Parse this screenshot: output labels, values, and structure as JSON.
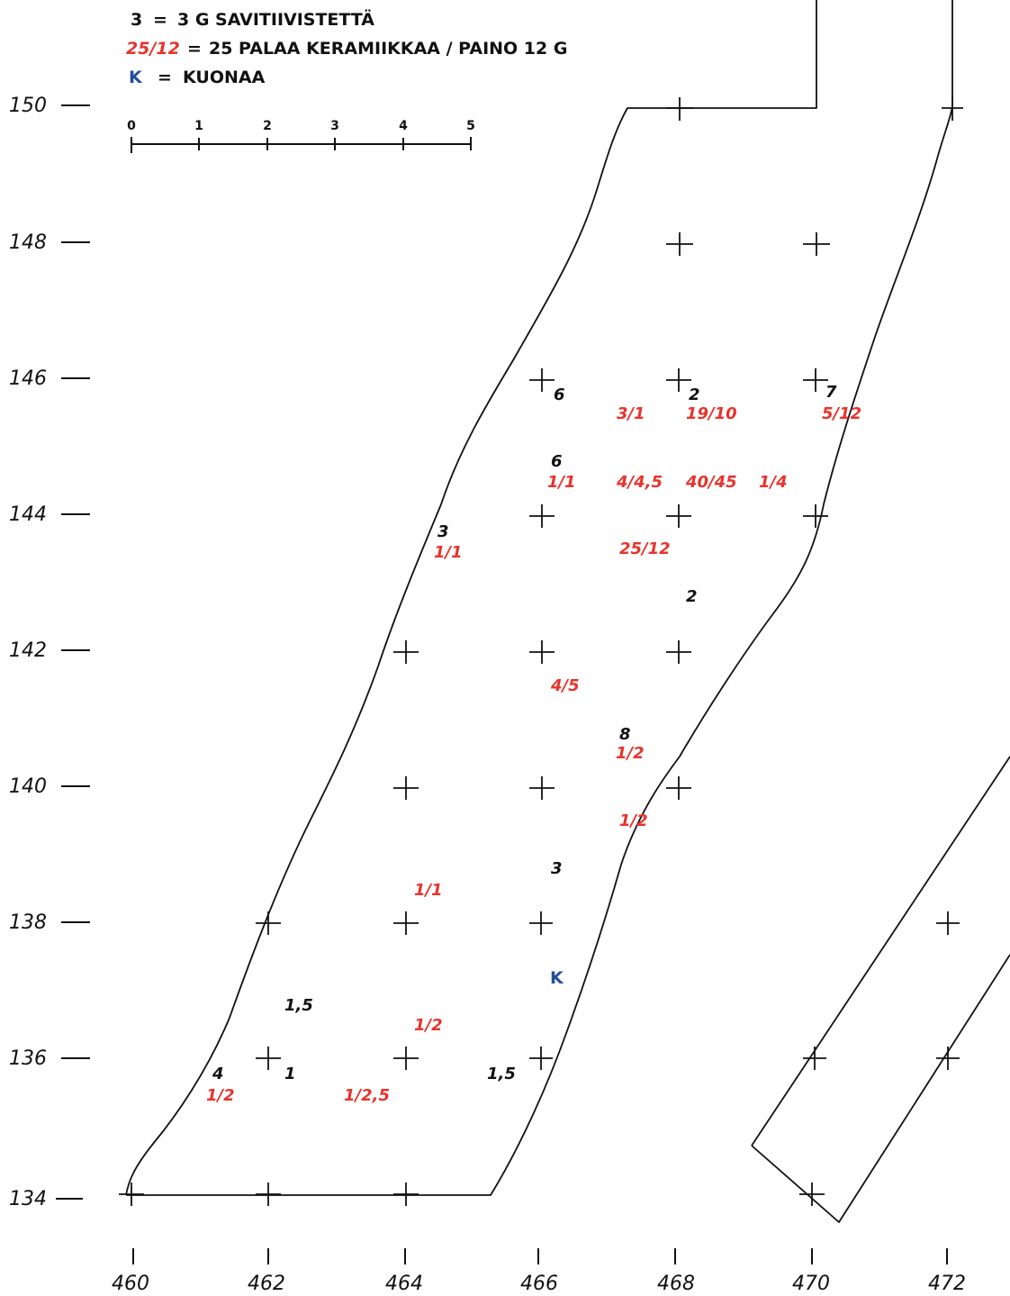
{
  "legend": {
    "clay": {
      "key": "3",
      "eq": "=",
      "text": "3 G SAVITIIVISTETTÄ"
    },
    "ceramics": {
      "key": "25/12",
      "eq": "=",
      "text": "25 PALAA KERAMIIKKAA / PAINO 12 G"
    },
    "slag": {
      "key": "K",
      "eq": "=",
      "text": "KUONAA"
    }
  },
  "scale_bar": {
    "ticks": [
      "0",
      "1",
      "2",
      "3",
      "4",
      "5"
    ]
  },
  "y_axis_labels": [
    "150",
    "148",
    "146",
    "144",
    "142",
    "140",
    "138",
    "136",
    "134"
  ],
  "x_axis_labels": [
    "460",
    "462",
    "464",
    "466",
    "468",
    "470",
    "472"
  ],
  "colors": {
    "ink": "#111111",
    "ceramics": "#e8332c",
    "slag": "#1f4fa0"
  },
  "finds_black": [
    "6",
    "2",
    "7",
    "6",
    "3",
    "2",
    "8",
    "3",
    "1,5",
    "4",
    "1",
    "1,5"
  ],
  "finds_red": [
    "3/1",
    "19/10",
    "5/12",
    "1/1",
    "4/4,5",
    "40/45",
    "1/4",
    "1/1",
    "25/12",
    "4/5",
    "1/2",
    "1/2",
    "1/1",
    "1/2",
    "1/2",
    "1/2,5"
  ],
  "finds_blue": [
    "K"
  ]
}
